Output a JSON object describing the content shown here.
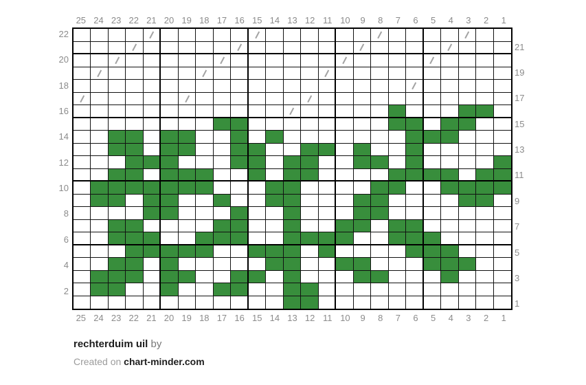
{
  "chart_data": {
    "type": "heatmap",
    "title": "rechterduim uil",
    "cols": 25,
    "rows": 22,
    "col_labels": [
      "25",
      "24",
      "23",
      "22",
      "21",
      "20",
      "19",
      "18",
      "17",
      "16",
      "15",
      "14",
      "13",
      "12",
      "11",
      "10",
      "9",
      "8",
      "7",
      "6",
      "5",
      "4",
      "3",
      "2",
      "1"
    ],
    "left_labels_top_to_bottom": [
      "22",
      "",
      "20",
      "",
      "18",
      "",
      "16",
      "",
      "14",
      "",
      "12",
      "",
      "10",
      "",
      "8",
      "",
      "6",
      "",
      "4",
      "",
      "2",
      ""
    ],
    "right_labels_top_to_bottom": [
      "",
      "21",
      "",
      "19",
      "",
      "17",
      "",
      "15",
      "",
      "13",
      "",
      "11",
      "",
      "9",
      "",
      "7",
      "",
      "5",
      "",
      "3",
      "",
      "1"
    ],
    "cell_fill_color": "#388e3c",
    "grid_line_color": "#111111",
    "thick_line_every": 5,
    "filled_cells_by_row": {
      "16": [
        7,
        3,
        2
      ],
      "15": [
        17,
        16,
        7,
        6,
        4,
        3
      ],
      "14": [
        23,
        22,
        20,
        19,
        16,
        14,
        6,
        5,
        4
      ],
      "13": [
        23,
        22,
        20,
        19,
        16,
        15,
        12,
        11,
        9,
        6
      ],
      "12": [
        22,
        21,
        20,
        16,
        15,
        13,
        12,
        9,
        8,
        6,
        1
      ],
      "11": [
        23,
        22,
        20,
        19,
        18,
        15,
        13,
        12,
        7,
        6,
        5,
        4,
        2,
        1
      ],
      "10": [
        24,
        23,
        22,
        21,
        20,
        19,
        18,
        14,
        13,
        8,
        7,
        4,
        3,
        2,
        1
      ],
      "9": [
        24,
        23,
        21,
        20,
        17,
        14,
        13,
        9,
        8,
        3,
        2
      ],
      "8": [
        21,
        20,
        16,
        13,
        9,
        8
      ],
      "7": [
        23,
        22,
        17,
        16,
        13,
        10,
        9,
        7,
        6
      ],
      "6": [
        23,
        22,
        21,
        18,
        17,
        16,
        13,
        12,
        11,
        10,
        7,
        6,
        5
      ],
      "5": [
        22,
        21,
        20,
        19,
        18,
        15,
        14,
        13,
        11,
        6,
        5,
        4
      ],
      "4": [
        23,
        22,
        20,
        14,
        13,
        10,
        9,
        5,
        4,
        3
      ],
      "3": [
        24,
        23,
        22,
        20,
        19,
        16,
        15,
        13,
        9,
        8,
        4
      ],
      "2": [
        24,
        23,
        20,
        17,
        16,
        13,
        12
      ],
      "1": [
        13,
        12
      ]
    },
    "slash_cells_by_row": {
      "22": [
        21,
        15,
        8,
        3
      ],
      "21": [
        22,
        16,
        9,
        4
      ],
      "20": [
        23,
        17,
        10,
        5
      ],
      "19": [
        24,
        18,
        11
      ],
      "18": [
        6
      ],
      "17": [
        25,
        19,
        12
      ],
      "16": [
        13
      ]
    },
    "slash_color": "#a3a3a3"
  },
  "footer": {
    "title": "rechterduim uil",
    "by_label": "by",
    "created_prefix": "Created on",
    "site": "chart-minder.com"
  }
}
